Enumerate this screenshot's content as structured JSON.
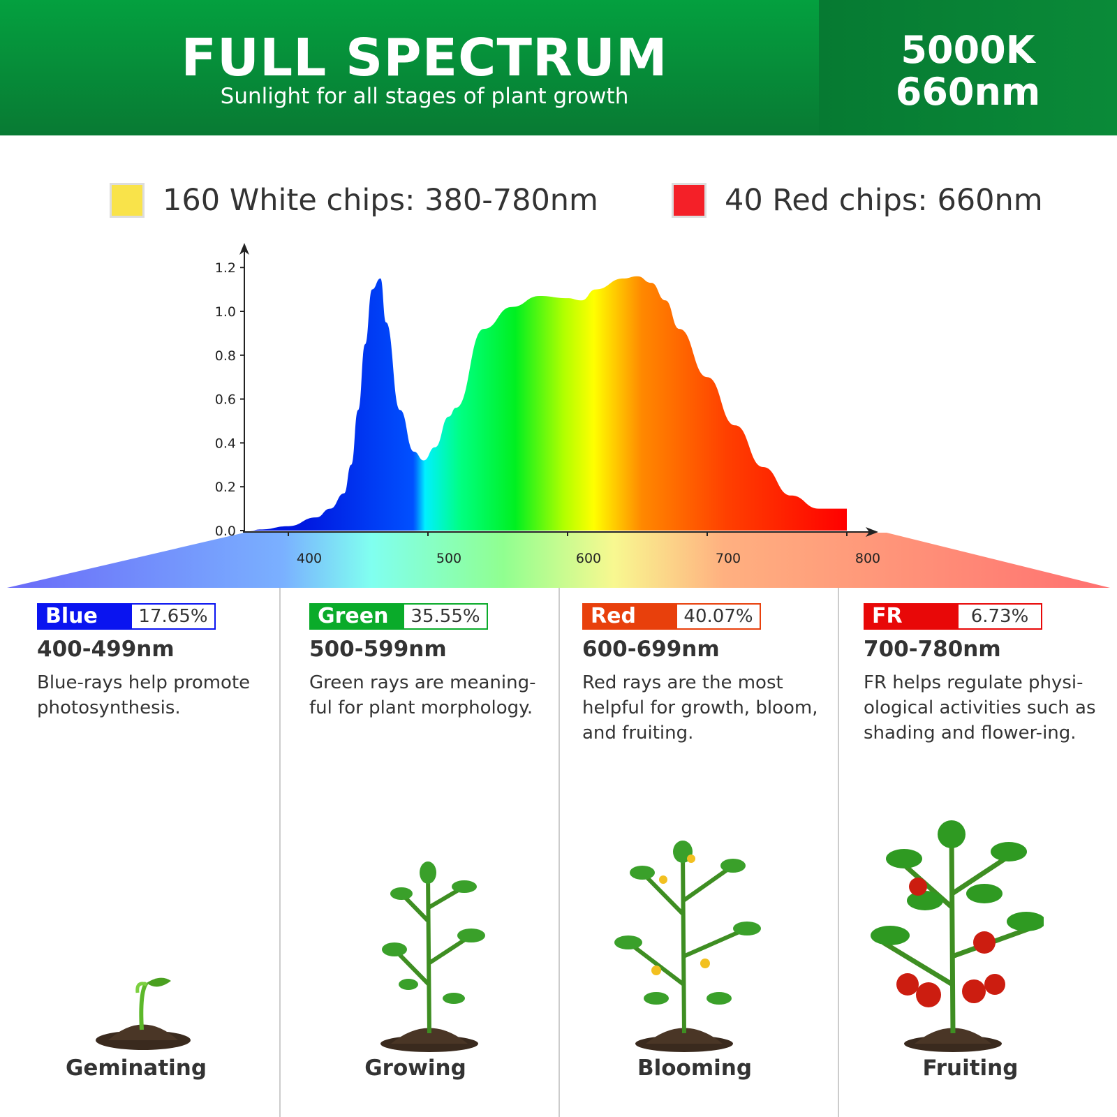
{
  "header": {
    "title": "FULL SPECTRUM",
    "subtitle": "Sunlight for all stages of plant growth",
    "spec_line1": "5000K",
    "spec_line2": "660nm"
  },
  "legend": [
    {
      "label": "160 White chips: 380-780nm",
      "color": "#f9e34a"
    },
    {
      "label": "40 Red chips: 660nm",
      "color": "#f42028"
    }
  ],
  "chart_data": {
    "type": "area",
    "title": "",
    "xlabel": "",
    "ylabel": "",
    "xlim": [
      368,
      822
    ],
    "ylim": [
      0,
      1.25
    ],
    "x_ticks": [
      "400",
      "500",
      "600",
      "700",
      "800"
    ],
    "y_ticks": [
      "0.0",
      "0.2",
      "0.4",
      "0.6",
      "0.8",
      "1.0",
      "1.2"
    ],
    "grid": false,
    "fill": "wavelength color gradient",
    "x": [
      373,
      380,
      400,
      420,
      430,
      440,
      445,
      450,
      455,
      460,
      466,
      470,
      480,
      490,
      497,
      505,
      515,
      520,
      540,
      560,
      580,
      600,
      610,
      620,
      640,
      650,
      660,
      670,
      680,
      700,
      720,
      740,
      760,
      780,
      800
    ],
    "y": [
      0,
      0.005,
      0.02,
      0.06,
      0.1,
      0.17,
      0.3,
      0.55,
      0.85,
      1.1,
      1.15,
      0.95,
      0.55,
      0.36,
      0.32,
      0.38,
      0.52,
      0.56,
      0.92,
      1.02,
      1.07,
      1.06,
      1.05,
      1.1,
      1.15,
      1.16,
      1.13,
      1.05,
      0.92,
      0.7,
      0.48,
      0.29,
      0.16,
      0.1,
      0.1
    ]
  },
  "bands": [
    {
      "name": "Blue",
      "percent": "17.65%",
      "range": "400-499nm",
      "desc": "Blue-rays help promote photosynthesis.",
      "color": "#0a14f0",
      "stage": "Geminating"
    },
    {
      "name": "Green",
      "percent": "35.55%",
      "range": "500-599nm",
      "desc": "Green rays are meaning-ful for plant morphology.",
      "color": "#0aab2a",
      "stage": "Growing"
    },
    {
      "name": "Red",
      "percent": "40.07%",
      "range": "600-699nm",
      "desc": "Red rays are the most helpful for growth, bloom, and fruiting.",
      "color": "#e8400c",
      "stage": "Blooming"
    },
    {
      "name": "FR",
      "percent": "6.73%",
      "range": "700-780nm",
      "desc": "FR helps regulate physi-ological activities such as shading and flower-ing.",
      "color": "#e80808",
      "stage": "Fruiting"
    }
  ]
}
